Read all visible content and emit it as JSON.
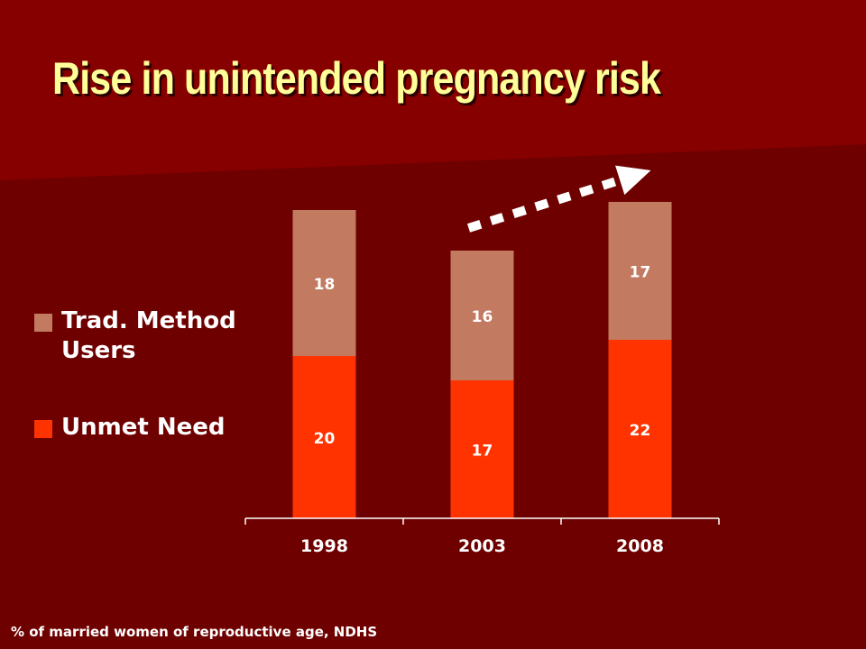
{
  "slide": {
    "title": "Rise in unintended pregnancy risk",
    "caption": "% of married women of reproductive age, NDHS",
    "colors": {
      "background": "#6f0000",
      "band": "#8a0000",
      "title": "#ffff99",
      "text": "#ffffff",
      "arrow": "#ffffff"
    }
  },
  "legend": {
    "items": [
      {
        "label": "Trad. Method Users",
        "color": "#c27a60"
      },
      {
        "label": "Unmet Need",
        "color": "#ff3300"
      }
    ]
  },
  "chart_data": {
    "type": "bar",
    "stacked": true,
    "categories": [
      "1998",
      "2003",
      "2008"
    ],
    "series": [
      {
        "name": "Unmet Need",
        "values": [
          20,
          17,
          22
        ],
        "color": "#ff3300"
      },
      {
        "name": "Trad. Method Users",
        "values": [
          18,
          16,
          17
        ],
        "color": "#c27a60"
      }
    ],
    "title": "Rise in unintended pregnancy risk",
    "xlabel": "",
    "ylabel": "",
    "ylim": [
      0,
      42
    ],
    "grid": false,
    "legend_position": "left",
    "annotations": [
      {
        "type": "arrow",
        "style": "dotted",
        "from_category": "2003",
        "to_category": "2008"
      }
    ]
  }
}
